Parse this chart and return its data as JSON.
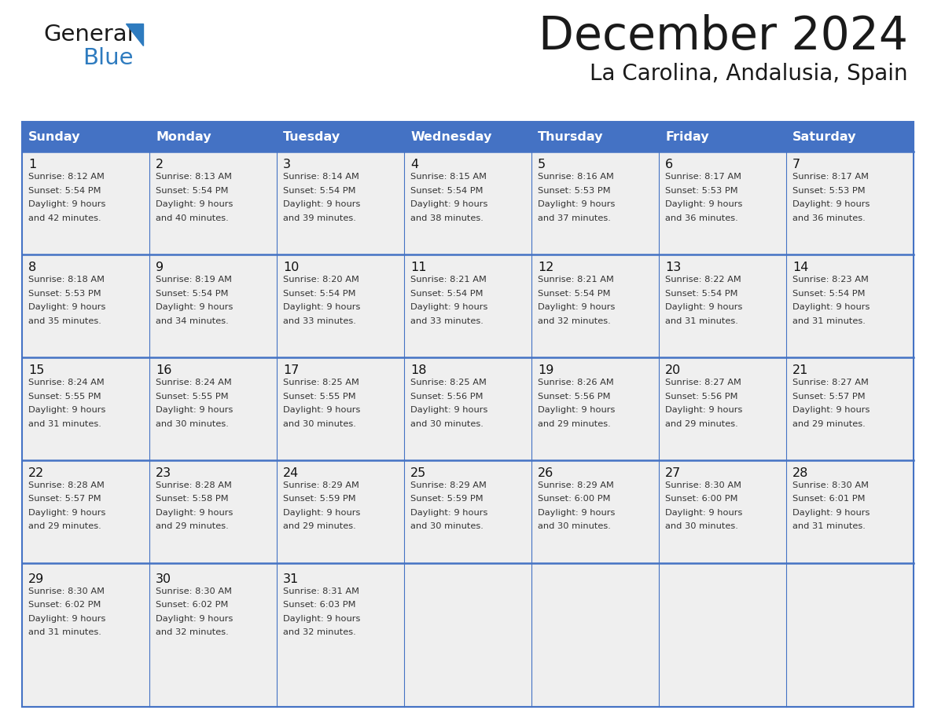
{
  "title": "December 2024",
  "subtitle": "La Carolina, Andalusia, Spain",
  "header_color": "#4472C4",
  "header_text_color": "#FFFFFF",
  "day_names": [
    "Sunday",
    "Monday",
    "Tuesday",
    "Wednesday",
    "Thursday",
    "Friday",
    "Saturday"
  ],
  "cell_bg_color": "#EFEFEF",
  "border_color": "#4472C4",
  "row_divider_color": "#4472C4",
  "days": [
    {
      "date": 1,
      "col": 0,
      "row": 0,
      "sunrise": "8:12 AM",
      "sunset": "5:54 PM",
      "daylight": "9 hours and 42 minutes"
    },
    {
      "date": 2,
      "col": 1,
      "row": 0,
      "sunrise": "8:13 AM",
      "sunset": "5:54 PM",
      "daylight": "9 hours and 40 minutes"
    },
    {
      "date": 3,
      "col": 2,
      "row": 0,
      "sunrise": "8:14 AM",
      "sunset": "5:54 PM",
      "daylight": "9 hours and 39 minutes"
    },
    {
      "date": 4,
      "col": 3,
      "row": 0,
      "sunrise": "8:15 AM",
      "sunset": "5:54 PM",
      "daylight": "9 hours and 38 minutes"
    },
    {
      "date": 5,
      "col": 4,
      "row": 0,
      "sunrise": "8:16 AM",
      "sunset": "5:53 PM",
      "daylight": "9 hours and 37 minutes"
    },
    {
      "date": 6,
      "col": 5,
      "row": 0,
      "sunrise": "8:17 AM",
      "sunset": "5:53 PM",
      "daylight": "9 hours and 36 minutes"
    },
    {
      "date": 7,
      "col": 6,
      "row": 0,
      "sunrise": "8:17 AM",
      "sunset": "5:53 PM",
      "daylight": "9 hours and 36 minutes"
    },
    {
      "date": 8,
      "col": 0,
      "row": 1,
      "sunrise": "8:18 AM",
      "sunset": "5:53 PM",
      "daylight": "9 hours and 35 minutes"
    },
    {
      "date": 9,
      "col": 1,
      "row": 1,
      "sunrise": "8:19 AM",
      "sunset": "5:54 PM",
      "daylight": "9 hours and 34 minutes"
    },
    {
      "date": 10,
      "col": 2,
      "row": 1,
      "sunrise": "8:20 AM",
      "sunset": "5:54 PM",
      "daylight": "9 hours and 33 minutes"
    },
    {
      "date": 11,
      "col": 3,
      "row": 1,
      "sunrise": "8:21 AM",
      "sunset": "5:54 PM",
      "daylight": "9 hours and 33 minutes"
    },
    {
      "date": 12,
      "col": 4,
      "row": 1,
      "sunrise": "8:21 AM",
      "sunset": "5:54 PM",
      "daylight": "9 hours and 32 minutes"
    },
    {
      "date": 13,
      "col": 5,
      "row": 1,
      "sunrise": "8:22 AM",
      "sunset": "5:54 PM",
      "daylight": "9 hours and 31 minutes"
    },
    {
      "date": 14,
      "col": 6,
      "row": 1,
      "sunrise": "8:23 AM",
      "sunset": "5:54 PM",
      "daylight": "9 hours and 31 minutes"
    },
    {
      "date": 15,
      "col": 0,
      "row": 2,
      "sunrise": "8:24 AM",
      "sunset": "5:55 PM",
      "daylight": "9 hours and 31 minutes"
    },
    {
      "date": 16,
      "col": 1,
      "row": 2,
      "sunrise": "8:24 AM",
      "sunset": "5:55 PM",
      "daylight": "9 hours and 30 minutes"
    },
    {
      "date": 17,
      "col": 2,
      "row": 2,
      "sunrise": "8:25 AM",
      "sunset": "5:55 PM",
      "daylight": "9 hours and 30 minutes"
    },
    {
      "date": 18,
      "col": 3,
      "row": 2,
      "sunrise": "8:25 AM",
      "sunset": "5:56 PM",
      "daylight": "9 hours and 30 minutes"
    },
    {
      "date": 19,
      "col": 4,
      "row": 2,
      "sunrise": "8:26 AM",
      "sunset": "5:56 PM",
      "daylight": "9 hours and 29 minutes"
    },
    {
      "date": 20,
      "col": 5,
      "row": 2,
      "sunrise": "8:27 AM",
      "sunset": "5:56 PM",
      "daylight": "9 hours and 29 minutes"
    },
    {
      "date": 21,
      "col": 6,
      "row": 2,
      "sunrise": "8:27 AM",
      "sunset": "5:57 PM",
      "daylight": "9 hours and 29 minutes"
    },
    {
      "date": 22,
      "col": 0,
      "row": 3,
      "sunrise": "8:28 AM",
      "sunset": "5:57 PM",
      "daylight": "9 hours and 29 minutes"
    },
    {
      "date": 23,
      "col": 1,
      "row": 3,
      "sunrise": "8:28 AM",
      "sunset": "5:58 PM",
      "daylight": "9 hours and 29 minutes"
    },
    {
      "date": 24,
      "col": 2,
      "row": 3,
      "sunrise": "8:29 AM",
      "sunset": "5:59 PM",
      "daylight": "9 hours and 29 minutes"
    },
    {
      "date": 25,
      "col": 3,
      "row": 3,
      "sunrise": "8:29 AM",
      "sunset": "5:59 PM",
      "daylight": "9 hours and 30 minutes"
    },
    {
      "date": 26,
      "col": 4,
      "row": 3,
      "sunrise": "8:29 AM",
      "sunset": "6:00 PM",
      "daylight": "9 hours and 30 minutes"
    },
    {
      "date": 27,
      "col": 5,
      "row": 3,
      "sunrise": "8:30 AM",
      "sunset": "6:00 PM",
      "daylight": "9 hours and 30 minutes"
    },
    {
      "date": 28,
      "col": 6,
      "row": 3,
      "sunrise": "8:30 AM",
      "sunset": "6:01 PM",
      "daylight": "9 hours and 31 minutes"
    },
    {
      "date": 29,
      "col": 0,
      "row": 4,
      "sunrise": "8:30 AM",
      "sunset": "6:02 PM",
      "daylight": "9 hours and 31 minutes"
    },
    {
      "date": 30,
      "col": 1,
      "row": 4,
      "sunrise": "8:30 AM",
      "sunset": "6:02 PM",
      "daylight": "9 hours and 32 minutes"
    },
    {
      "date": 31,
      "col": 2,
      "row": 4,
      "sunrise": "8:31 AM",
      "sunset": "6:03 PM",
      "daylight": "9 hours and 32 minutes"
    }
  ]
}
